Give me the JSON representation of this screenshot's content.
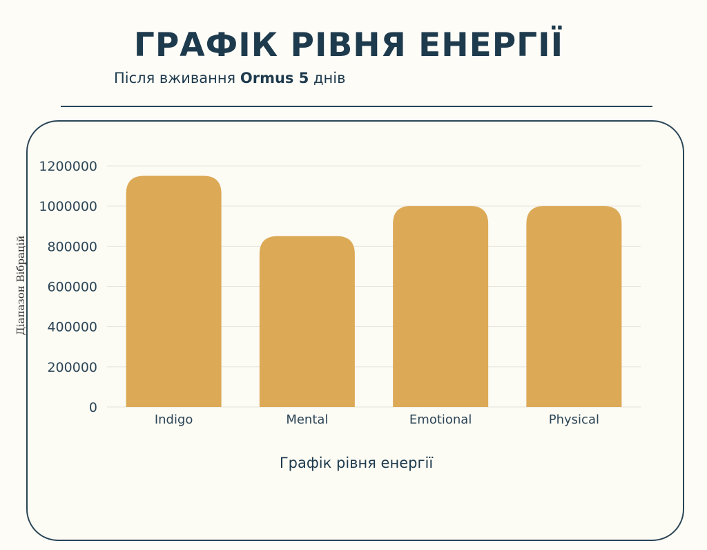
{
  "header": {
    "title": "ГРАФІК РІВНЯ ЕНЕРГІЇ",
    "subtitle_pre": "Після вживання ",
    "subtitle_bold": "Ormus 5",
    "subtitle_post": " днів"
  },
  "colors": {
    "bar": "#dca956",
    "text": "#1e3a4d",
    "grid": "#e6e3da",
    "panel_border": "#2a4556"
  },
  "chart_data": {
    "type": "bar",
    "title": "",
    "xlabel": "Графік рівня енергії",
    "ylabel": "Діапазон Вібрацій",
    "categories": [
      "Indigo",
      "Mental",
      "Emotional",
      "Physical"
    ],
    "values": [
      1150000,
      850000,
      1000000,
      1000000
    ],
    "ylim": [
      0,
      1200000
    ],
    "yticks": [
      "0",
      "200000",
      "400000",
      "600000",
      "800000",
      "1000000",
      "1200000"
    ],
    "grid": true,
    "legend": "none"
  }
}
